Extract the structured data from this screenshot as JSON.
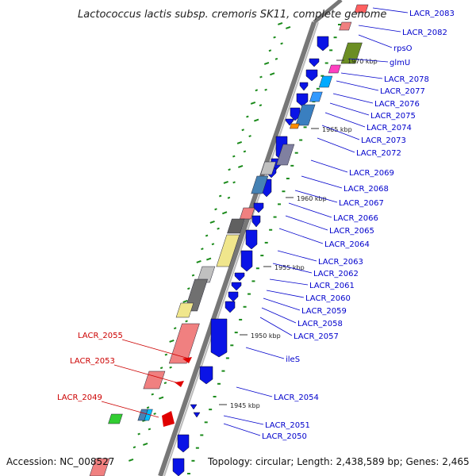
{
  "title": "Lactococcus lactis subsp. cremoris SK11, complete genome",
  "footer": {
    "accession": "Accession: NC_008527",
    "topology": "Topology: circular; Length: 2,438,589 bp; Genes: 2,465"
  },
  "scale_marks": [
    "1945 kbp",
    "1950 kbp",
    "1955 kbp",
    "1960 kbp",
    "1965 kbp",
    "1970 kbp"
  ],
  "genes_plus": [
    "LACR_2083",
    "LACR_2082",
    "rpsO",
    "glmU",
    "LACR_2078",
    "LACR_2077",
    "LACR_2076",
    "LACR_2075",
    "LACR_2074",
    "LACR_2073",
    "LACR_2072",
    "LACR_2069",
    "LACR_2068",
    "LACR_2067",
    "LACR_2066",
    "LACR_2065",
    "LACR_2064",
    "LACR_2063",
    "LACR_2062",
    "LACR_2061",
    "LACR_2060",
    "LACR_2059",
    "LACR_2058",
    "LACR_2057",
    "ileS",
    "LACR_2054",
    "LACR_2051",
    "LACR_2050"
  ],
  "genes_minus": [
    "LACR_2055",
    "LACR_2053",
    "LACR_2049"
  ],
  "colors": {
    "plus_label": "#0000cc",
    "minus_label": "#cc0000",
    "backbone": "#888888",
    "gene_arrow": "#0a14e6",
    "gc_dots": "#1a8a1a"
  }
}
